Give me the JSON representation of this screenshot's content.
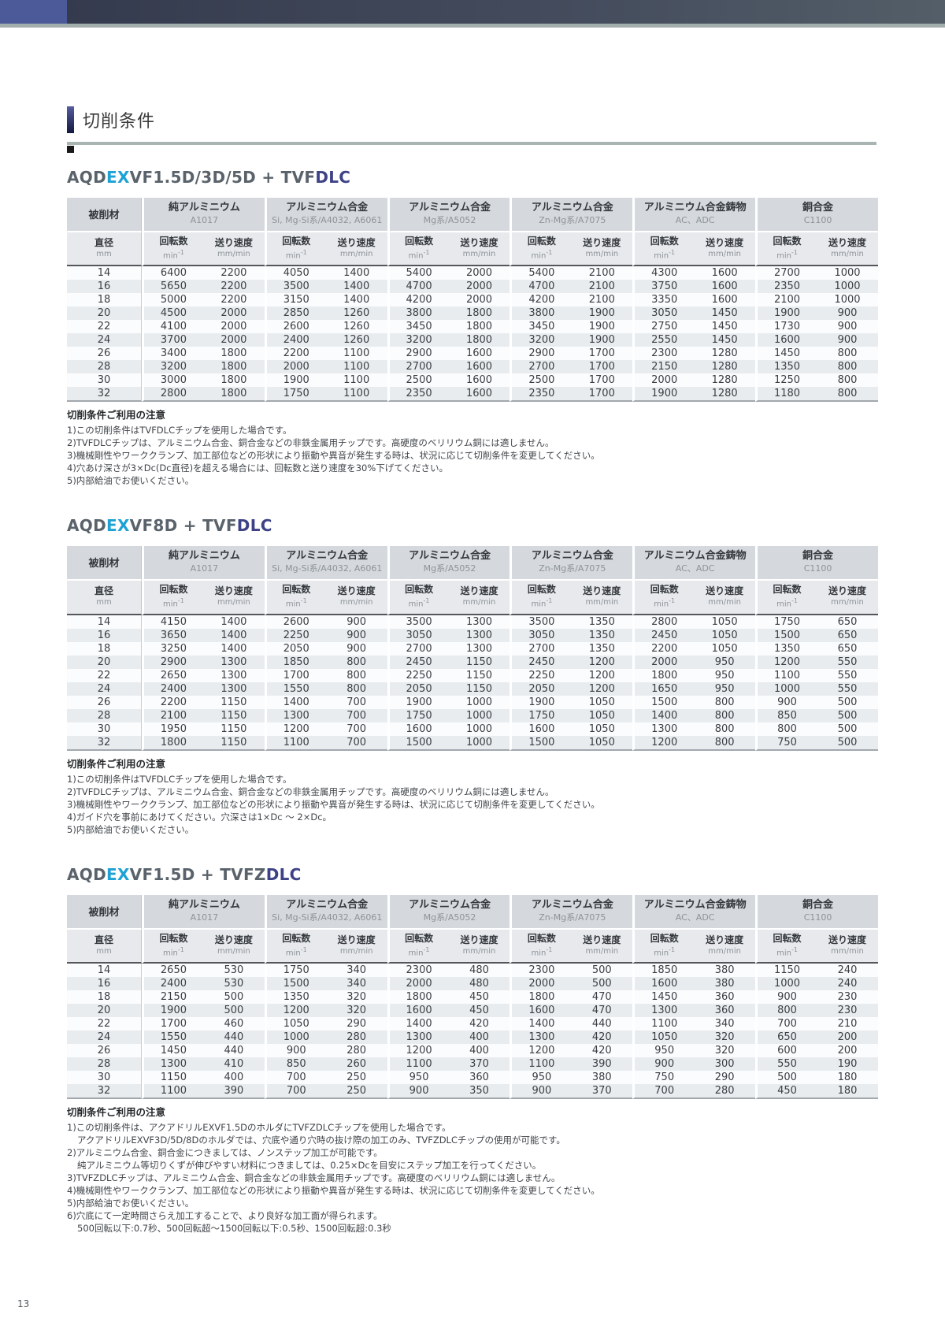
{
  "page": {
    "number": "13",
    "title": "切削条件"
  },
  "colors": {
    "accent_cyan": "#1ea2d5",
    "brand_navy": "#3d4287",
    "header_block_blue": "#4d5a99",
    "header_bar_dark": "#3a4154",
    "rule_gray": "#a9b5b2",
    "table_header_gray": "#d5d9dd",
    "row_alt_gray": "#e9ecef"
  },
  "table_header": {
    "material_label": "被削材",
    "diameter_label": "直径",
    "diameter_unit": "mm",
    "speed_label": "回転数",
    "speed_unit_base": "min",
    "speed_unit_sup": "-1",
    "feed_label": "送り速度",
    "feed_unit": "mm/min",
    "groups": [
      {
        "name": "純アルミニウム",
        "sub": "A1017"
      },
      {
        "name": "アルミニウム合金",
        "sub": "Si, Mg-Si系/A4032, A6061"
      },
      {
        "name": "アルミニウム合金",
        "sub": "Mg系/A5052"
      },
      {
        "name": "アルミニウム合金",
        "sub": "Zn-Mg系/A7075"
      },
      {
        "name": "アルミニウム合金鋳物",
        "sub": "AC、ADC"
      },
      {
        "name": "銅合金",
        "sub": "C1100"
      }
    ]
  },
  "sections": [
    {
      "title_parts": [
        {
          "text": "AQD",
          "style": "base"
        },
        {
          "text": "EX",
          "style": "accent"
        },
        {
          "text": "VF1.5D/3D/5D + TVF",
          "style": "base"
        },
        {
          "text": "DLC",
          "style": "dlc"
        }
      ],
      "rows": [
        [
          14,
          6400,
          2200,
          4050,
          1400,
          5400,
          2000,
          5400,
          2100,
          4300,
          1600,
          2700,
          1000
        ],
        [
          16,
          5650,
          2200,
          3500,
          1400,
          4700,
          2000,
          4700,
          2100,
          3750,
          1600,
          2350,
          1000
        ],
        [
          18,
          5000,
          2200,
          3150,
          1400,
          4200,
          2000,
          4200,
          2100,
          3350,
          1600,
          2100,
          1000
        ],
        [
          20,
          4500,
          2000,
          2850,
          1260,
          3800,
          1800,
          3800,
          1900,
          3050,
          1450,
          1900,
          900
        ],
        [
          22,
          4100,
          2000,
          2600,
          1260,
          3450,
          1800,
          3450,
          1900,
          2750,
          1450,
          1730,
          900
        ],
        [
          24,
          3700,
          2000,
          2400,
          1260,
          3200,
          1800,
          3200,
          1900,
          2550,
          1450,
          1600,
          900
        ],
        [
          26,
          3400,
          1800,
          2200,
          1100,
          2900,
          1600,
          2900,
          1700,
          2300,
          1280,
          1450,
          800
        ],
        [
          28,
          3200,
          1800,
          2000,
          1100,
          2700,
          1600,
          2700,
          1700,
          2150,
          1280,
          1350,
          800
        ],
        [
          30,
          3000,
          1800,
          1900,
          1100,
          2500,
          1600,
          2500,
          1700,
          2000,
          1280,
          1250,
          800
        ],
        [
          32,
          2800,
          1800,
          1750,
          1100,
          2350,
          1600,
          2350,
          1700,
          1900,
          1280,
          1180,
          800
        ]
      ],
      "notes_title": "切削条件ご利用の注意",
      "notes": [
        {
          "text": "1)この切削条件はTVFDLCチップを使用した場合です。",
          "indent": false
        },
        {
          "text": "2)TVFDLCチップは、アルミニウム合金、銅合金などの非鉄金属用チップです。高硬度のベリリウム銅には適しません。",
          "indent": false
        },
        {
          "text": "3)機械剛性やワーククランプ、加工部位などの形状により振動や異音が発生する時は、状況に応じて切削条件を変更してください。",
          "indent": false
        },
        {
          "text": "4)穴あけ深さが3×Dc(Dc直径)を超える場合には、回転数と送り速度を30%下げてください。",
          "indent": false
        },
        {
          "text": "5)内部給油でお使いください。",
          "indent": false
        }
      ]
    },
    {
      "title_parts": [
        {
          "text": "AQD",
          "style": "base"
        },
        {
          "text": "EX",
          "style": "accent"
        },
        {
          "text": "VF8D + TVF",
          "style": "base"
        },
        {
          "text": "DLC",
          "style": "dlc"
        }
      ],
      "rows": [
        [
          14,
          4150,
          1400,
          2600,
          900,
          3500,
          1300,
          3500,
          1350,
          2800,
          1050,
          1750,
          650
        ],
        [
          16,
          3650,
          1400,
          2250,
          900,
          3050,
          1300,
          3050,
          1350,
          2450,
          1050,
          1500,
          650
        ],
        [
          18,
          3250,
          1400,
          2050,
          900,
          2700,
          1300,
          2700,
          1350,
          2200,
          1050,
          1350,
          650
        ],
        [
          20,
          2900,
          1300,
          1850,
          800,
          2450,
          1150,
          2450,
          1200,
          2000,
          950,
          1200,
          550
        ],
        [
          22,
          2650,
          1300,
          1700,
          800,
          2250,
          1150,
          2250,
          1200,
          1800,
          950,
          1100,
          550
        ],
        [
          24,
          2400,
          1300,
          1550,
          800,
          2050,
          1150,
          2050,
          1200,
          1650,
          950,
          1000,
          550
        ],
        [
          26,
          2200,
          1150,
          1400,
          700,
          1900,
          1000,
          1900,
          1050,
          1500,
          800,
          900,
          500
        ],
        [
          28,
          2100,
          1150,
          1300,
          700,
          1750,
          1000,
          1750,
          1050,
          1400,
          800,
          850,
          500
        ],
        [
          30,
          1950,
          1150,
          1200,
          700,
          1600,
          1000,
          1600,
          1050,
          1300,
          800,
          800,
          500
        ],
        [
          32,
          1800,
          1150,
          1100,
          700,
          1500,
          1000,
          1500,
          1050,
          1200,
          800,
          750,
          500
        ]
      ],
      "notes_title": "切削条件ご利用の注意",
      "notes": [
        {
          "text": "1)この切削条件はTVFDLCチップを使用した場合です。",
          "indent": false
        },
        {
          "text": "2)TVFDLCチップは、アルミニウム合金、銅合金などの非鉄金属用チップです。高硬度のベリリウム銅には適しません。",
          "indent": false
        },
        {
          "text": "3)機械剛性やワーククランプ、加工部位などの形状により振動や異音が発生する時は、状況に応じて切削条件を変更してください。",
          "indent": false
        },
        {
          "text": "4)ガイド穴を事前にあけてください。穴深さは1×Dc ～ 2×Dc。",
          "indent": false
        },
        {
          "text": "5)内部給油でお使いください。",
          "indent": false
        }
      ]
    },
    {
      "title_parts": [
        {
          "text": "AQD",
          "style": "base"
        },
        {
          "text": "EX",
          "style": "accent"
        },
        {
          "text": "VF1.5D + TVFZ",
          "style": "base"
        },
        {
          "text": "DLC",
          "style": "dlc"
        }
      ],
      "rows": [
        [
          14,
          2650,
          530,
          1750,
          340,
          2300,
          480,
          2300,
          500,
          1850,
          380,
          1150,
          240
        ],
        [
          16,
          2400,
          530,
          1500,
          340,
          2000,
          480,
          2000,
          500,
          1600,
          380,
          1000,
          240
        ],
        [
          18,
          2150,
          500,
          1350,
          320,
          1800,
          450,
          1800,
          470,
          1450,
          360,
          900,
          230
        ],
        [
          20,
          1900,
          500,
          1200,
          320,
          1600,
          450,
          1600,
          470,
          1300,
          360,
          800,
          230
        ],
        [
          22,
          1700,
          460,
          1050,
          290,
          1400,
          420,
          1400,
          440,
          1100,
          340,
          700,
          210
        ],
        [
          24,
          1550,
          440,
          1000,
          280,
          1300,
          400,
          1300,
          420,
          1050,
          320,
          650,
          200
        ],
        [
          26,
          1450,
          440,
          900,
          280,
          1200,
          400,
          1200,
          420,
          950,
          320,
          600,
          200
        ],
        [
          28,
          1300,
          410,
          850,
          260,
          1100,
          370,
          1100,
          390,
          900,
          300,
          550,
          190
        ],
        [
          30,
          1150,
          400,
          700,
          250,
          950,
          360,
          950,
          380,
          750,
          290,
          500,
          180
        ],
        [
          32,
          1100,
          390,
          700,
          250,
          900,
          350,
          900,
          370,
          700,
          280,
          450,
          180
        ]
      ],
      "notes_title": "切削条件ご利用の注意",
      "notes": [
        {
          "text": "1)この切削条件は、アクアドリルEXVF1.5DのホルダにTVFZDLCチップを使用した場合です。",
          "indent": false
        },
        {
          "text": "アクアドリルEXVF3D/5D/8Dのホルダでは、穴底や通り穴時の抜け際の加工のみ、TVFZDLCチップの使用が可能です。",
          "indent": true
        },
        {
          "text": "2)アルミニウム合金、銅合金につきましては、ノンステップ加工が可能です。",
          "indent": false
        },
        {
          "text": "純アルミニウム等切りくずが伸びやすい材料につきましては、0.25×Dcを目安にステップ加工を行ってください。",
          "indent": true
        },
        {
          "text": "3)TVFZDLCチップは、アルミニウム合金、銅合金などの非鉄金属用チップです。高硬度のベリリウム銅には適しません。",
          "indent": false
        },
        {
          "text": "4)機械剛性やワーククランプ、加工部位などの形状により振動や異音が発生する時は、状況に応じて切削条件を変更してください。",
          "indent": false
        },
        {
          "text": "5)内部給油でお使いください。",
          "indent": false
        },
        {
          "text": "6)穴底にて一定時間さらえ加工することで、より良好な加工面が得られます。",
          "indent": false
        },
        {
          "text": "500回転以下:0.7秒、500回転超～1500回転以下:0.5秒、1500回転超:0.3秒",
          "indent": true
        }
      ]
    }
  ]
}
